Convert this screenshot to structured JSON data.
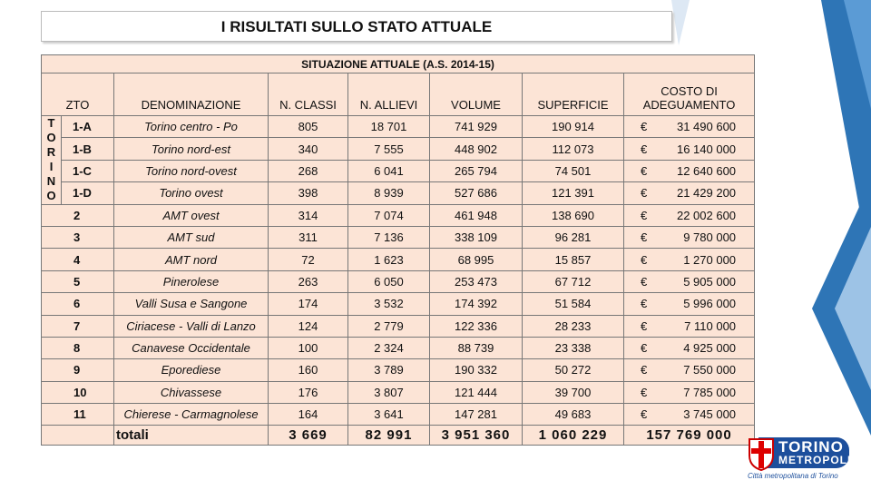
{
  "title": "I RISULTATI SULLO STATO ATTUALE",
  "table": {
    "caption": "SITUAZIONE ATTUALE (A.S. 2014-15)",
    "group_label": "TORINO",
    "columns": [
      "ZTO",
      "DENOMINAZIONE",
      "N. CLASSI",
      "N. ALLIEVI",
      "VOLUME",
      "SUPERFICIE",
      "COSTO DI ADEGUAMENTO"
    ],
    "rows": [
      [
        "1-A",
        "Torino centro - Po",
        "805",
        "18 701",
        "741 929",
        "190 914",
        "€",
        "31 490 600"
      ],
      [
        "1-B",
        "Torino nord-est",
        "340",
        "7 555",
        "448 902",
        "112 073",
        "€",
        "16 140 000"
      ],
      [
        "1-C",
        "Torino nord-ovest",
        "268",
        "6 041",
        "265 794",
        "74 501",
        "€",
        "12 640 600"
      ],
      [
        "1-D",
        "Torino ovest",
        "398",
        "8 939",
        "527 686",
        "121 391",
        "€",
        "21 429 200"
      ],
      [
        "2",
        "AMT ovest",
        "314",
        "7 074",
        "461 948",
        "138 690",
        "€",
        "22 002 600"
      ],
      [
        "3",
        "AMT sud",
        "311",
        "7 136",
        "338 109",
        "96 281",
        "€",
        "9 780 000"
      ],
      [
        "4",
        "AMT nord",
        "72",
        "1 623",
        "68 995",
        "15 857",
        "€",
        "1 270 000"
      ],
      [
        "5",
        "Pinerolese",
        "263",
        "6 050",
        "253 473",
        "67 712",
        "€",
        "5 905 000"
      ],
      [
        "6",
        "Valli Susa e Sangone",
        "174",
        "3 532",
        "174 392",
        "51 584",
        "€",
        "5 996 000"
      ],
      [
        "7",
        "Ciriacese - Valli di Lanzo",
        "124",
        "2 779",
        "122 336",
        "28 233",
        "€",
        "7 110 000"
      ],
      [
        "8",
        "Canavese Occidentale",
        "100",
        "2 324",
        "88 739",
        "23 338",
        "€",
        "4 925 000"
      ],
      [
        "9",
        "Eporediese",
        "160",
        "3 789",
        "190 332",
        "50 272",
        "€",
        "7 550 000"
      ],
      [
        "10",
        "Chivassese",
        "176",
        "3 807",
        "121 444",
        "39 700",
        "€",
        "7 785 000"
      ],
      [
        "11",
        "Chierese - Carmagnolese",
        "164",
        "3 641",
        "147 281",
        "49 683",
        "€",
        "3 745 000"
      ]
    ],
    "totals": {
      "label": "totali",
      "values": [
        "3 669",
        "82 991",
        "3 951 360",
        "1 060 229",
        "157 769 000"
      ]
    }
  },
  "logo": {
    "name": "TORINO",
    "subname": "METROPOLI",
    "tagline": "Città metropolitana di Torino"
  }
}
